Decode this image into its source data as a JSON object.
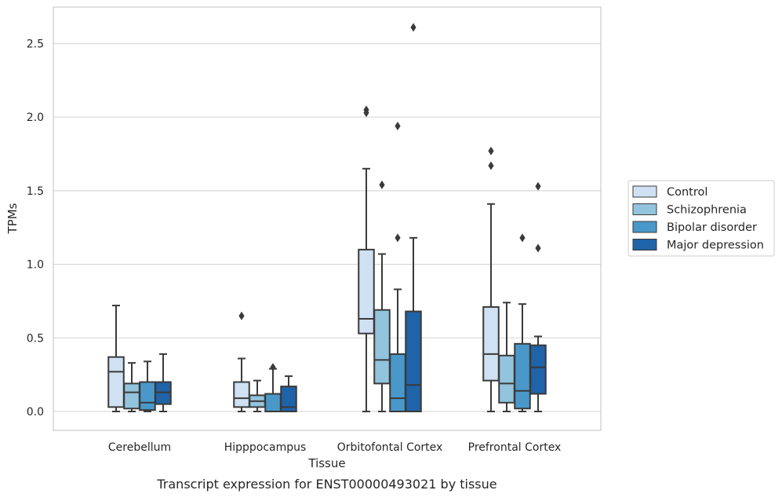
{
  "chart_data": {
    "type": "boxplot",
    "title": "",
    "caption": "Transcript expression for ENST00000493021 by tissue",
    "xlabel": "Tissue",
    "ylabel": "TPMs",
    "ylim": [
      -0.13,
      2.75
    ],
    "yticks": [
      0.0,
      0.5,
      1.0,
      1.5,
      2.0,
      2.5
    ],
    "ytick_labels": [
      "0.0",
      "0.5",
      "1.0",
      "1.5",
      "2.0",
      "2.5"
    ],
    "grid": "horizontal",
    "legend_position": "right",
    "categories": [
      "Cerebellum",
      "Hipppocampus",
      "Orbitofontal Cortex",
      "Prefrontal Cortex"
    ],
    "series": [
      {
        "name": "Control",
        "color": "#cfe1f2",
        "boxes": [
          {
            "whisker_low": 0.0,
            "q1": 0.03,
            "median": 0.27,
            "q3": 0.37,
            "whisker_high": 0.72,
            "outliers": []
          },
          {
            "whisker_low": 0.0,
            "q1": 0.03,
            "median": 0.09,
            "q3": 0.2,
            "whisker_high": 0.36,
            "outliers": [
              0.65
            ]
          },
          {
            "whisker_low": 0.0,
            "q1": 0.53,
            "median": 0.63,
            "q3": 1.1,
            "whisker_high": 1.65,
            "outliers": [
              2.03,
              2.05
            ]
          },
          {
            "whisker_low": 0.0,
            "q1": 0.21,
            "median": 0.39,
            "q3": 0.71,
            "whisker_high": 1.41,
            "outliers": [
              1.67,
              1.77
            ]
          }
        ]
      },
      {
        "name": "Schizophrenia",
        "color": "#93c4de",
        "boxes": [
          {
            "whisker_low": 0.0,
            "q1": 0.02,
            "median": 0.13,
            "q3": 0.19,
            "whisker_high": 0.33,
            "outliers": []
          },
          {
            "whisker_low": 0.0,
            "q1": 0.03,
            "median": 0.07,
            "q3": 0.11,
            "whisker_high": 0.21,
            "outliers": []
          },
          {
            "whisker_low": 0.0,
            "q1": 0.19,
            "median": 0.35,
            "q3": 0.69,
            "whisker_high": 1.07,
            "outliers": [
              1.54
            ]
          },
          {
            "whisker_low": 0.0,
            "q1": 0.06,
            "median": 0.19,
            "q3": 0.38,
            "whisker_high": 0.74,
            "outliers": []
          }
        ]
      },
      {
        "name": "Bipolar disorder",
        "color": "#4a98c9",
        "boxes": [
          {
            "whisker_low": 0.0,
            "q1": 0.01,
            "median": 0.06,
            "q3": 0.2,
            "whisker_high": 0.34,
            "outliers": []
          },
          {
            "whisker_low": 0.0,
            "q1": 0.0,
            "median": 0.0,
            "q3": 0.12,
            "whisker_high": 0.29,
            "outliers": [
              0.3
            ]
          },
          {
            "whisker_low": 0.0,
            "q1": 0.0,
            "median": 0.09,
            "q3": 0.39,
            "whisker_high": 0.83,
            "outliers": [
              1.18,
              1.94
            ]
          },
          {
            "whisker_low": 0.0,
            "q1": 0.02,
            "median": 0.14,
            "q3": 0.46,
            "whisker_high": 0.73,
            "outliers": [
              1.18
            ]
          }
        ]
      },
      {
        "name": "Major depression",
        "color": "#1f63a8",
        "boxes": [
          {
            "whisker_low": 0.0,
            "q1": 0.05,
            "median": 0.13,
            "q3": 0.2,
            "whisker_high": 0.39,
            "outliers": []
          },
          {
            "whisker_low": 0.0,
            "q1": 0.0,
            "median": 0.03,
            "q3": 0.17,
            "whisker_high": 0.24,
            "outliers": []
          },
          {
            "whisker_low": 0.0,
            "q1": 0.0,
            "median": 0.18,
            "q3": 0.68,
            "whisker_high": 1.18,
            "outliers": [
              2.61
            ]
          },
          {
            "whisker_low": 0.0,
            "q1": 0.12,
            "median": 0.3,
            "q3": 0.45,
            "whisker_high": 0.51,
            "outliers": [
              1.11,
              1.53
            ]
          }
        ]
      }
    ]
  }
}
